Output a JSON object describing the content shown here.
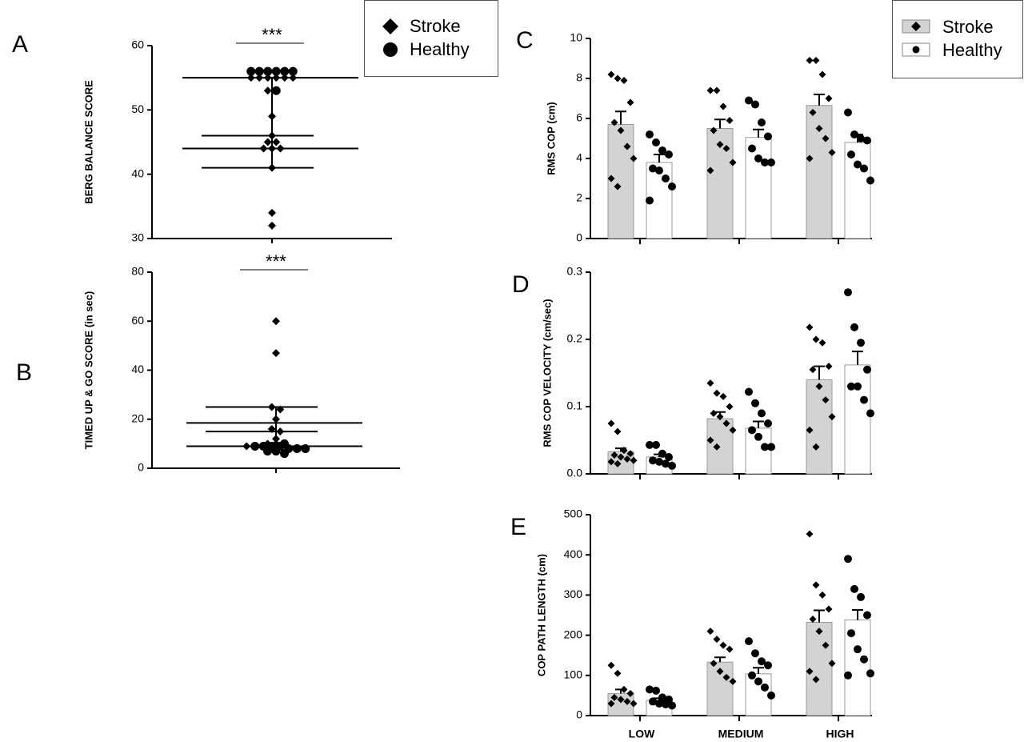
{
  "chart_data": [
    {
      "type": "scatter",
      "panel_label": "A",
      "ylabel": "BERG BALANCE SCORE",
      "annotation": "***",
      "ylim": [
        30,
        60
      ],
      "yticks": [
        30,
        40,
        50,
        60
      ],
      "legend": true,
      "series": [
        {
          "name": "Stroke",
          "marker": "diamond",
          "color": "#000000",
          "values": [
            55,
            55,
            55,
            55,
            55,
            55,
            53,
            49,
            46,
            45,
            45,
            44,
            44,
            44,
            41,
            34,
            32
          ]
        },
        {
          "name": "Healthy",
          "marker": "circle",
          "color": "#000000",
          "values": [
            56,
            56,
            56,
            56,
            56,
            56,
            53
          ]
        }
      ],
      "summary_lines": {
        "long": [
          55,
          44
        ],
        "short": [
          46,
          41
        ]
      }
    },
    {
      "type": "scatter",
      "panel_label": "B",
      "ylabel": "TIMED UP & GO SCORE (in sec)",
      "annotation": "***",
      "ylim": [
        0,
        80
      ],
      "yticks": [
        0,
        20,
        40,
        60,
        80
      ],
      "legend": false,
      "series": [
        {
          "name": "Stroke",
          "marker": "diamond",
          "color": "#000000",
          "values": [
            60,
            47,
            25,
            24,
            20,
            16,
            15,
            12,
            10,
            10,
            9
          ]
        },
        {
          "name": "Healthy",
          "marker": "circle",
          "color": "#000000",
          "values": [
            10,
            9,
            9,
            9,
            9,
            8,
            8,
            8,
            7,
            7,
            6
          ]
        }
      ],
      "summary_lines": {
        "long": [
          18.5,
          9
        ],
        "short": [
          25,
          15
        ]
      }
    },
    {
      "type": "bar",
      "panel_label": "C",
      "ylabel": "RMS COP (cm)",
      "ylim": [
        0,
        10
      ],
      "yticks": [
        0,
        2,
        4,
        6,
        8,
        10
      ],
      "legend": true,
      "categories": [
        null,
        null,
        null
      ],
      "series": [
        {
          "name": "Stroke",
          "marker": "diamond",
          "color": "#d3d3d3",
          "values": [
            5.7,
            5.5,
            6.65
          ],
          "errors": [
            0.65,
            0.45,
            0.55
          ],
          "points": [
            [
              8.2,
              8.0,
              7.9,
              6.8,
              5.8,
              5.4,
              4.6,
              4.0,
              3.0,
              2.6
            ],
            [
              7.4,
              7.4,
              6.6,
              5.9,
              5.4,
              4.7,
              4.5,
              3.8,
              3.4
            ],
            [
              8.9,
              8.9,
              8.2,
              7.0,
              6.3,
              5.5,
              5.0,
              4.3,
              4.0
            ]
          ]
        },
        {
          "name": "Healthy",
          "marker": "circle",
          "color": "#ffffff",
          "values": [
            3.8,
            5.05,
            4.8
          ],
          "errors": [
            0.4,
            0.4,
            0.4
          ],
          "points": [
            [
              5.2,
              4.8,
              4.4,
              4.2,
              3.5,
              3.4,
              3.0,
              2.6,
              1.9
            ],
            [
              6.9,
              6.7,
              5.8,
              5.1,
              4.5,
              4.0,
              3.8,
              3.8
            ],
            [
              6.3,
              5.2,
              5.0,
              4.9,
              4.2,
              3.7,
              3.5,
              2.9
            ]
          ]
        }
      ]
    },
    {
      "type": "bar",
      "panel_label": "D",
      "ylabel": "RMS COP VELOCITY  (cm/sec)",
      "ylim": [
        0,
        0.3
      ],
      "yticks": [
        {
          "value": 0,
          "label": "0.0"
        },
        0.1,
        0.2,
        0.3
      ],
      "legend": false,
      "categories": [
        null,
        null,
        null
      ],
      "series": [
        {
          "name": "Stroke",
          "marker": "diamond",
          "color": "#d3d3d3",
          "values": [
            0.033,
            0.082,
            0.14
          ],
          "errors": [
            0.005,
            0.01,
            0.02
          ],
          "points": [
            [
              0.075,
              0.063,
              0.035,
              0.03,
              0.028,
              0.025,
              0.022,
              0.02,
              0.018,
              0.015
            ],
            [
              0.135,
              0.12,
              0.115,
              0.1,
              0.09,
              0.085,
              0.075,
              0.065,
              0.05,
              0.04
            ],
            [
              0.218,
              0.2,
              0.195,
              0.16,
              0.155,
              0.13,
              0.11,
              0.085,
              0.065,
              0.04
            ]
          ]
        },
        {
          "name": "Healthy",
          "marker": "circle",
          "color": "#ffffff",
          "values": [
            0.025,
            0.068,
            0.162
          ],
          "errors": [
            0.004,
            0.01,
            0.02
          ],
          "points": [
            [
              0.043,
              0.043,
              0.03,
              0.025,
              0.02,
              0.018,
              0.015,
              0.012
            ],
            [
              0.122,
              0.105,
              0.09,
              0.075,
              0.065,
              0.055,
              0.04,
              0.04
            ],
            [
              0.27,
              0.218,
              0.195,
              0.155,
              0.13,
              0.13,
              0.11,
              0.09
            ]
          ]
        }
      ]
    },
    {
      "type": "bar",
      "panel_label": "E",
      "ylabel": "COP PATH LENGTH (cm)",
      "ylim": [
        0,
        500
      ],
      "yticks": [
        0,
        100,
        200,
        300,
        400,
        500
      ],
      "legend": false,
      "categories": [
        "LOW",
        "MEDIUM",
        "HIGH"
      ],
      "series": [
        {
          "name": "Stroke",
          "marker": "diamond",
          "color": "#d3d3d3",
          "values": [
            55,
            133,
            232
          ],
          "errors": [
            10,
            12,
            30
          ],
          "points": [
            [
              125,
              105,
              65,
              55,
              45,
              40,
              35,
              30,
              30
            ],
            [
              210,
              190,
              175,
              165,
              130,
              110,
              95,
              85
            ],
            [
              452,
              325,
              300,
              265,
              240,
              210,
              175,
              130,
              110,
              90
            ]
          ]
        },
        {
          "name": "Healthy",
          "marker": "circle",
          "color": "#ffffff",
          "values": [
            38,
            104,
            238
          ],
          "errors": [
            5,
            15,
            25
          ],
          "points": [
            [
              65,
              62,
              45,
              40,
              35,
              30,
              28,
              25
            ],
            [
              185,
              155,
              135,
              125,
              100,
              85,
              70,
              50
            ],
            [
              390,
              315,
              295,
              250,
              205,
              165,
              140,
              105,
              100
            ]
          ]
        }
      ]
    }
  ]
}
